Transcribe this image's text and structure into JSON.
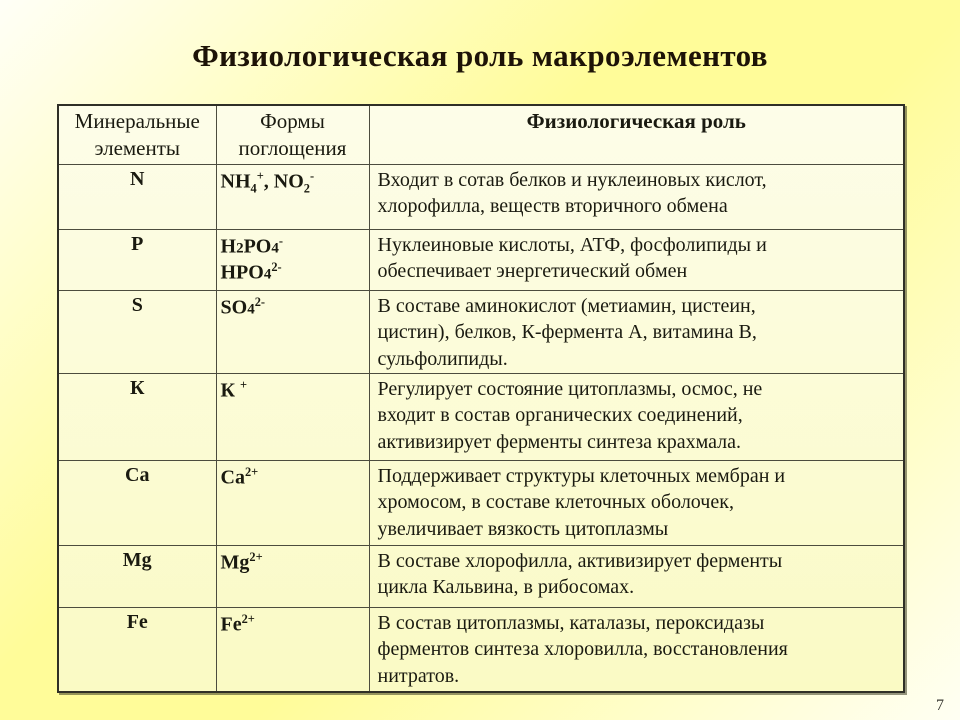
{
  "slide": {
    "title": "Физиологическая роль макроэлементов",
    "page_number": "7"
  },
  "table": {
    "headers": [
      {
        "label": "Минеральные элементы"
      },
      {
        "label": "Формы поглощения"
      },
      {
        "label": "Физиологическая роль"
      }
    ],
    "rows": [
      {
        "element": "N",
        "forms": [
          "NH_4_^+^, NO_2_^-^"
        ],
        "role": "Входит в сотав белков и нуклеиновых кислот,\nхлорофилла, веществ вторичного обмена"
      },
      {
        "element": "P",
        "forms": [
          "H~2~PO~4~^-^",
          "HPO~4~^2-^"
        ],
        "role": "Нуклеиновые кислоты, АТФ, фосфолипиды и\nобеспечивает энергетический обмен"
      },
      {
        "element": "S",
        "forms": [
          "SO~4~^2-^"
        ],
        "role": "В составе аминокислот (метиамин, цистеин,\nцистин), белков, К-фермента А, витамина В,\nсульфолипиды."
      },
      {
        "element": "К",
        "forms": [
          "К ^+^"
        ],
        "role": "Регулирует состояние цитоплазмы, осмос, не\nвходит в состав органических соединений,\nактивизирует ферменты синтеза крахмала."
      },
      {
        "element": "Ca",
        "forms": [
          "Ca^2+^"
        ],
        "role": "Поддерживает структуры клеточных мембран и\nхромосом, в составе клеточных оболочек,\nувеличивает вязкость цитоплазмы"
      },
      {
        "element": "Mg",
        "forms": [
          "Mg^2+^"
        ],
        "role": "В составе хлорофилла, активизирует ферменты\nцикла Кальвина, в рибосомах."
      },
      {
        "element": "Fe",
        "forms": [
          "Fe^2+^"
        ],
        "role": "В состав цитоплазмы, каталазы, пероксидазы\nферментов синтеза хлоровилла, восстановления\nнитратов."
      }
    ]
  },
  "colors": {
    "background_yellow": "#fffc99",
    "background_white": "#fffff7",
    "cell_fill_top": "#fdfde9",
    "cell_fill_bottom": "#fafac4",
    "border": "#2f2f26",
    "text": "#1a1a10"
  }
}
